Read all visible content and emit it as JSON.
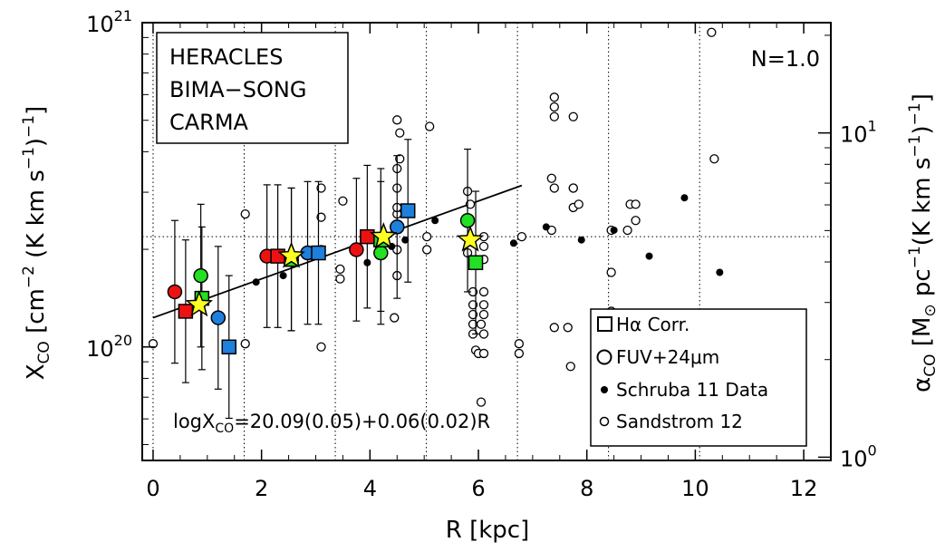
{
  "chart_data": {
    "type": "scatter",
    "xlabel": "R [kpc]",
    "ylabel_left": {
      "main": "X",
      "sub": "CO",
      "rest1": " [cm",
      "sup1": "−2",
      "rest2": " (K km s",
      "sup2": "−1",
      "rest3": ")",
      "sup3": "−1",
      "rest4": "]"
    },
    "ylabel_right": {
      "main": "α",
      "sub": "CO",
      "rest1": " [M",
      "sun": "⊙",
      "rest2": " pc",
      "sup1": "−1",
      "rest3": "(K km s",
      "sup2": "−1",
      "rest4": ")",
      "sup3": "−1",
      "rest5": "]"
    },
    "xlim": [
      -0.2,
      12.5
    ],
    "ylim_log": [
      19.65,
      21.0
    ],
    "y_scale": "log",
    "x_ticks": [
      "0",
      "2",
      "4",
      "6",
      "8",
      "10",
      "12"
    ],
    "x_tick_values": [
      0,
      2,
      4,
      6,
      8,
      10,
      12
    ],
    "y_ticks_left": [
      {
        "value": 20,
        "base": "10",
        "exp": "20"
      },
      {
        "value": 21,
        "base": "10",
        "exp": "21"
      }
    ],
    "y_ticks_right": [
      {
        "alpha": 1,
        "base": "10",
        "exp": "0"
      },
      {
        "alpha": 10,
        "base": "10",
        "exp": "1"
      }
    ],
    "alpha_to_logx_offset": 19.66,
    "annotation_n": "N=1.0",
    "fit_label": {
      "pre": "logX",
      "sub": "CO",
      "post": "=20.09(0.05)+0.06(0.02)R"
    },
    "fit_line": {
      "intercept": 20.09,
      "slope": 0.06,
      "x_range": [
        0.0,
        6.8
      ]
    },
    "ref_log_x": 20.34,
    "vertical_dotted_x": [
      0.0,
      1.68,
      3.36,
      5.04,
      6.72,
      8.4,
      10.08
    ],
    "legend_top": [
      {
        "name": "HERACLES",
        "color": "#22e022"
      },
      {
        "name": "BIMA−SONG",
        "color": "#1e7fdc"
      },
      {
        "name": "CARMA",
        "color": "#ee1111"
      }
    ],
    "legend_bottom": [
      {
        "label": "Hα Corr.",
        "marker": "square-open"
      },
      {
        "label": "FUV+24μm",
        "marker": "circle-open"
      },
      {
        "label": "Schruba 11 Data",
        "marker": "dot-filled"
      },
      {
        "label": "Sandstrom 12",
        "marker": "dot-open"
      }
    ],
    "series": [
      {
        "name": "HERACLES",
        "color": "#22e022",
        "points": [
          {
            "x": 0.88,
            "y": 20.22,
            "marker": "circle",
            "err": 0.22
          },
          {
            "x": 0.9,
            "y": 20.15,
            "marker": "square",
            "err": 0.22
          },
          {
            "x": 2.55,
            "y": 20.27,
            "marker": "circle",
            "err": 0.22
          },
          {
            "x": 2.55,
            "y": 20.27,
            "marker": "square",
            "err": 0.22
          },
          {
            "x": 4.2,
            "y": 20.29,
            "marker": "circle",
            "err": 0.22
          },
          {
            "x": 4.2,
            "y": 20.33,
            "marker": "square",
            "err": 0.22
          },
          {
            "x": 5.8,
            "y": 20.39,
            "marker": "circle",
            "err": 0.22
          },
          {
            "x": 5.95,
            "y": 20.26,
            "marker": "square",
            "err": 0.22
          }
        ]
      },
      {
        "name": "BIMA−SONG",
        "color": "#1e7fdc",
        "points": [
          {
            "x": 1.2,
            "y": 20.09,
            "marker": "circle",
            "err": 0.22
          },
          {
            "x": 1.4,
            "y": 20.0,
            "marker": "square",
            "err": 0.22
          },
          {
            "x": 2.85,
            "y": 20.29,
            "marker": "circle",
            "err": 0.22
          },
          {
            "x": 3.05,
            "y": 20.29,
            "marker": "square",
            "err": 0.22
          },
          {
            "x": 4.5,
            "y": 20.37,
            "marker": "circle",
            "err": 0.22
          },
          {
            "x": 4.7,
            "y": 20.42,
            "marker": "square",
            "err": 0.22
          }
        ]
      },
      {
        "name": "CARMA",
        "color": "#ee1111",
        "points": [
          {
            "x": 0.4,
            "y": 20.17,
            "marker": "circle",
            "err": 0.22
          },
          {
            "x": 0.6,
            "y": 20.11,
            "marker": "square",
            "err": 0.22
          },
          {
            "x": 2.1,
            "y": 20.28,
            "marker": "circle",
            "err": 0.22
          },
          {
            "x": 2.3,
            "y": 20.28,
            "marker": "square",
            "err": 0.22
          },
          {
            "x": 3.75,
            "y": 20.3,
            "marker": "circle",
            "err": 0.22
          },
          {
            "x": 3.95,
            "y": 20.34,
            "marker": "square",
            "err": 0.22
          }
        ]
      },
      {
        "name": "stars",
        "color": "#ffff22",
        "points": [
          {
            "x": 0.85,
            "y": 20.13,
            "marker": "star"
          },
          {
            "x": 2.55,
            "y": 20.28,
            "marker": "star"
          },
          {
            "x": 4.25,
            "y": 20.34,
            "marker": "star"
          },
          {
            "x": 5.85,
            "y": 20.33,
            "marker": "star"
          }
        ]
      },
      {
        "name": "Schruba 11 Data",
        "color": "#000000",
        "points": [
          {
            "x": 1.9,
            "y": 20.2
          },
          {
            "x": 2.4,
            "y": 20.22
          },
          {
            "x": 3.95,
            "y": 20.26
          },
          {
            "x": 4.4,
            "y": 20.31
          },
          {
            "x": 4.65,
            "y": 20.33
          },
          {
            "x": 5.2,
            "y": 20.39
          },
          {
            "x": 6.65,
            "y": 20.32
          },
          {
            "x": 7.25,
            "y": 20.37
          },
          {
            "x": 7.9,
            "y": 20.33
          },
          {
            "x": 8.5,
            "y": 20.36
          },
          {
            "x": 9.15,
            "y": 20.28
          },
          {
            "x": 9.8,
            "y": 20.46
          },
          {
            "x": 10.45,
            "y": 20.23
          }
        ]
      },
      {
        "name": "Sandstrom 12",
        "color": "#000000",
        "points": [
          {
            "x": 0.0,
            "y": 20.01
          },
          {
            "x": 1.7,
            "y": 20.01
          },
          {
            "x": 1.7,
            "y": 20.41
          },
          {
            "x": 3.1,
            "y": 20.0
          },
          {
            "x": 3.1,
            "y": 20.3
          },
          {
            "x": 3.1,
            "y": 20.4
          },
          {
            "x": 3.1,
            "y": 20.49
          },
          {
            "x": 3.45,
            "y": 20.21
          },
          {
            "x": 3.45,
            "y": 20.24
          },
          {
            "x": 3.5,
            "y": 20.45
          },
          {
            "x": 4.45,
            "y": 20.09
          },
          {
            "x": 4.5,
            "y": 20.22
          },
          {
            "x": 4.5,
            "y": 20.3
          },
          {
            "x": 4.5,
            "y": 20.41
          },
          {
            "x": 4.5,
            "y": 20.43
          },
          {
            "x": 4.5,
            "y": 20.49
          },
          {
            "x": 4.55,
            "y": 20.58
          },
          {
            "x": 4.55,
            "y": 20.66
          },
          {
            "x": 4.5,
            "y": 20.7
          },
          {
            "x": 4.5,
            "y": 20.55
          },
          {
            "x": 5.05,
            "y": 20.34
          },
          {
            "x": 5.05,
            "y": 20.3
          },
          {
            "x": 5.1,
            "y": 20.68
          },
          {
            "x": 5.8,
            "y": 20.48
          },
          {
            "x": 5.85,
            "y": 20.44
          },
          {
            "x": 5.8,
            "y": 20.29
          },
          {
            "x": 5.9,
            "y": 20.13
          },
          {
            "x": 5.9,
            "y": 20.17
          },
          {
            "x": 5.9,
            "y": 20.1
          },
          {
            "x": 5.9,
            "y": 20.07
          },
          {
            "x": 5.9,
            "y": 20.04
          },
          {
            "x": 5.95,
            "y": 19.99
          },
          {
            "x": 6.0,
            "y": 19.98
          },
          {
            "x": 6.1,
            "y": 20.27
          },
          {
            "x": 6.1,
            "y": 20.31
          },
          {
            "x": 6.1,
            "y": 20.34
          },
          {
            "x": 6.1,
            "y": 20.17
          },
          {
            "x": 6.1,
            "y": 20.13
          },
          {
            "x": 6.1,
            "y": 20.1
          },
          {
            "x": 6.05,
            "y": 20.07
          },
          {
            "x": 6.1,
            "y": 20.04
          },
          {
            "x": 6.1,
            "y": 19.98
          },
          {
            "x": 6.05,
            "y": 19.83
          },
          {
            "x": 6.75,
            "y": 19.98
          },
          {
            "x": 6.75,
            "y": 20.01
          },
          {
            "x": 6.8,
            "y": 20.34
          },
          {
            "x": 7.35,
            "y": 20.36
          },
          {
            "x": 7.35,
            "y": 20.52
          },
          {
            "x": 7.4,
            "y": 20.71
          },
          {
            "x": 7.4,
            "y": 20.74
          },
          {
            "x": 7.4,
            "y": 20.77
          },
          {
            "x": 7.4,
            "y": 20.49
          },
          {
            "x": 7.4,
            "y": 20.06
          },
          {
            "x": 7.65,
            "y": 20.06
          },
          {
            "x": 7.7,
            "y": 19.94
          },
          {
            "x": 7.75,
            "y": 20.43
          },
          {
            "x": 7.75,
            "y": 20.49
          },
          {
            "x": 7.75,
            "y": 20.49
          },
          {
            "x": 7.75,
            "y": 20.71
          },
          {
            "x": 7.85,
            "y": 20.44
          },
          {
            "x": 8.45,
            "y": 20.11
          },
          {
            "x": 8.45,
            "y": 20.23
          },
          {
            "x": 8.45,
            "y": 20.36
          },
          {
            "x": 8.75,
            "y": 20.36
          },
          {
            "x": 8.8,
            "y": 20.44
          },
          {
            "x": 8.9,
            "y": 20.44
          },
          {
            "x": 8.9,
            "y": 20.39
          },
          {
            "x": 10.3,
            "y": 20.97
          },
          {
            "x": 10.35,
            "y": 20.58
          }
        ]
      }
    ]
  }
}
